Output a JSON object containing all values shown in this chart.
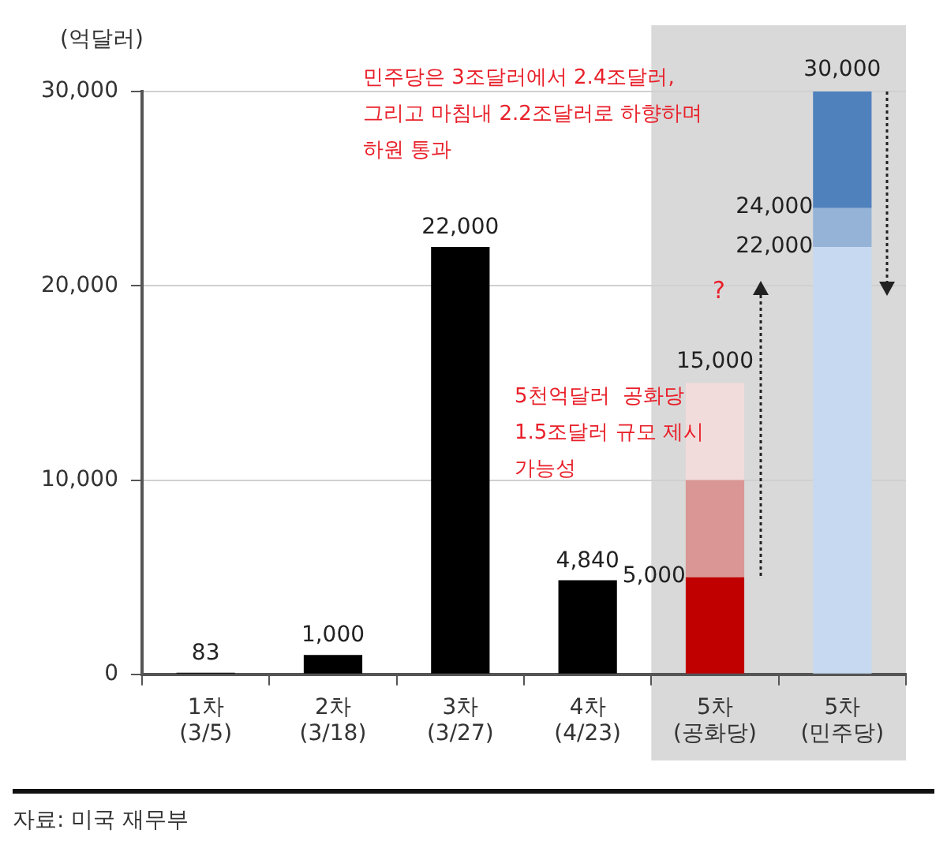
{
  "chart_data": {
    "type": "bar",
    "stacked": true,
    "ylabel": "(억달러)",
    "categories": [
      "1차 (3/5)",
      "2차 (3/18)",
      "3차 (3/27)",
      "4차 (4/23)",
      "5차 (공화당)",
      "5차 (민주당)"
    ],
    "series": [
      {
        "colors": [
          "#000000",
          "#000000",
          "#000000",
          "#000000",
          "#c00000",
          "#c6d9f1"
        ],
        "values": [
          83,
          1000,
          22000,
          4840,
          5000,
          22000
        ],
        "value_labels": [
          "83",
          "1,000",
          "22,000",
          "4,840",
          null,
          null
        ]
      },
      {
        "colors": [
          "#000000",
          "#000000",
          "#000000",
          "#000000",
          "#d99694",
          "#95b3d7"
        ],
        "values": [
          null,
          null,
          null,
          null,
          5000,
          2000
        ]
      },
      {
        "colors": [
          "#000000",
          "#000000",
          "#000000",
          "#000000",
          "#f2dcdb",
          "#4f81bd"
        ],
        "values": [
          null,
          null,
          null,
          null,
          5000,
          6000
        ]
      }
    ],
    "ylim": [
      0,
      30000
    ],
    "yticks": [
      0,
      {
        "value": 10000,
        "label": "10,000"
      },
      {
        "value": 20000,
        "label": "20,000"
      },
      {
        "value": 30000,
        "label": "30,000"
      }
    ],
    "grid": "y",
    "legend": false,
    "bands": [
      {
        "axis": "x",
        "from": "5차 (공화당)",
        "to": "5차 (민주당)",
        "color": "#d9d9d9"
      }
    ],
    "annotations": [
      "민주당은 3조달러에서 2.4조달러,\n그리고 마침내 2.2조달러로 하향하며\n하원 통과",
      "5천억달러  공화당\n1.5조달러 규모 제시\n가능성",
      "?",
      {
        "text": "5,000",
        "x": "5차 (공화당)",
        "y": 5000
      },
      {
        "text": "15,000",
        "x": "5차 (공화당)",
        "y": 15000
      },
      {
        "text": "22,000",
        "x": "5차 (민주당)",
        "y": 22000
      },
      {
        "text": "24,000",
        "x": "5차 (민주당)",
        "y": 24000
      },
      {
        "text": "30,000",
        "x": "5차 (민주당)",
        "y": 30000
      },
      "자료: 미국 재무부"
    ]
  }
}
